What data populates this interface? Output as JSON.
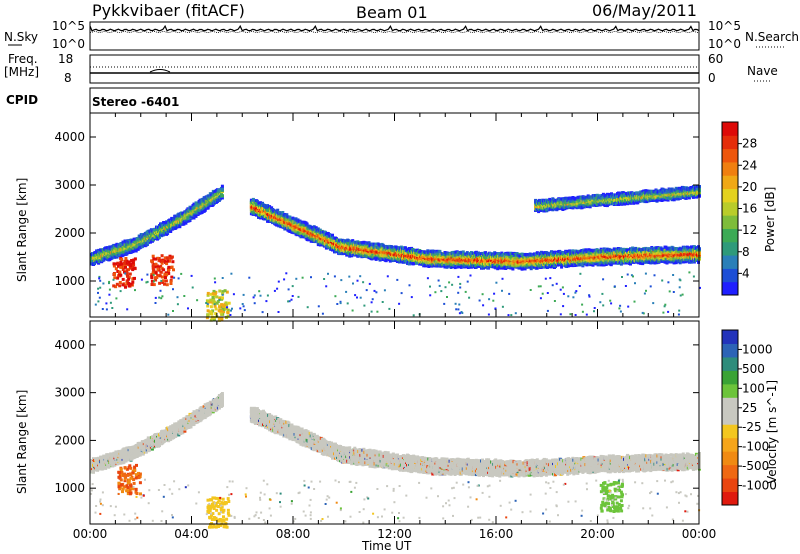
{
  "header": {
    "site": "Pykkvibaer (fitACF)",
    "beam": "Beam 01",
    "date": "06/May/2011"
  },
  "panels": {
    "nsky": {
      "left_label": "N.Sky",
      "right_label": "N.Search",
      "left_ticks": [
        "10^5",
        "10^0"
      ],
      "right_ticks": [
        "10^5",
        "10^0"
      ]
    },
    "freq": {
      "left_label_1": "Freq.",
      "left_label_2": "[MHz]",
      "right_label": "Nave",
      "left_ticks": [
        "18",
        "8"
      ],
      "right_ticks": [
        "60",
        "0"
      ]
    },
    "cpid": {
      "label": "CPID",
      "value": "Stereo -6401"
    }
  },
  "xaxis": {
    "label": "Time UT",
    "ticks": [
      "00:00",
      "04:00",
      "08:00",
      "12:00",
      "16:00",
      "20:00",
      "00:00"
    ]
  },
  "chart_data": [
    {
      "type": "heatmap",
      "name": "power",
      "ylabel": "Slant Range [km]",
      "yticks": [
        1000,
        2000,
        3000,
        4000
      ],
      "ylim": [
        250,
        4500
      ],
      "xlim_hours": [
        0,
        24
      ],
      "colorbar": {
        "label": "Power [dB]",
        "ticks": [
          "4",
          "8",
          "12",
          "16",
          "20",
          "24",
          "28"
        ],
        "colors": [
          "#1f1fff",
          "#1d4fd6",
          "#2a7fb8",
          "#2e9a7a",
          "#3caa55",
          "#7ebc3a",
          "#b9cc2a",
          "#e4d21f",
          "#f0a816",
          "#f07f10",
          "#ee560c",
          "#e52d0a",
          "#dd0a08"
        ]
      },
      "features": [
        {
          "kind": "band",
          "hours": [
            6.3,
            24
          ],
          "range_center_km": [
            2600,
            1750,
            1500,
            1450,
            1550,
            1600
          ],
          "width_km": 300,
          "intensity": "high"
        },
        {
          "kind": "band",
          "hours": [
            0,
            5.2
          ],
          "range_center_km": [
            1500,
            1800,
            2300,
            2900
          ],
          "width_km": 250,
          "intensity": "mid"
        },
        {
          "kind": "patch",
          "hour": 1.3,
          "range_km": 1200,
          "intensity": "very high"
        },
        {
          "kind": "patch",
          "hour": 2.8,
          "range_km": 1250,
          "intensity": "very high"
        },
        {
          "kind": "patch",
          "hour": 5.0,
          "range_km": 520,
          "intensity": "mid"
        },
        {
          "kind": "band",
          "hours": [
            17.5,
            24
          ],
          "range_center_km": [
            2600,
            2900
          ],
          "width_km": 200,
          "intensity": "mid"
        }
      ]
    },
    {
      "type": "heatmap",
      "name": "velocity",
      "ylabel": "Slant Range [km]",
      "yticks": [
        1000,
        2000,
        3000,
        4000
      ],
      "ylim": [
        250,
        4500
      ],
      "xlim_hours": [
        0,
        24
      ],
      "colorbar": {
        "label": "Velocity [m s^-1]",
        "ticks": [
          "1000",
          "500",
          "100",
          "25",
          "-25",
          "-100",
          "-500",
          "-1000"
        ],
        "colors": [
          "#2233bb",
          "#2c63b6",
          "#2e8c7b",
          "#3aa335",
          "#6cc43a",
          "#c8c8c0",
          "#c8c8c0",
          "#f3c61f",
          "#f5a51a",
          "#f08a12",
          "#ef6812",
          "#e9450f",
          "#e01a0e"
        ]
      },
      "features": [
        {
          "kind": "band",
          "hours": [
            6.3,
            24
          ],
          "range_center_km": [
            2600,
            1750,
            1500,
            1450,
            1550,
            1600
          ],
          "width_km": 300,
          "intensity": "~0 m/s (grey)"
        },
        {
          "kind": "band",
          "hours": [
            0,
            5.2
          ],
          "range_center_km": [
            1500,
            1800,
            2300,
            2900
          ],
          "width_km": 250,
          "intensity": "~0 m/s (grey)"
        },
        {
          "kind": "patch",
          "hour": 1.5,
          "range_km": 1200,
          "intensity": "-100 to -500 m/s"
        },
        {
          "kind": "patch",
          "hour": 5.0,
          "range_km": 520,
          "intensity": "-25 to -100 m/s"
        },
        {
          "kind": "patch",
          "hour": 20.5,
          "range_km": 850,
          "intensity": "100 to 500 m/s"
        }
      ]
    }
  ]
}
